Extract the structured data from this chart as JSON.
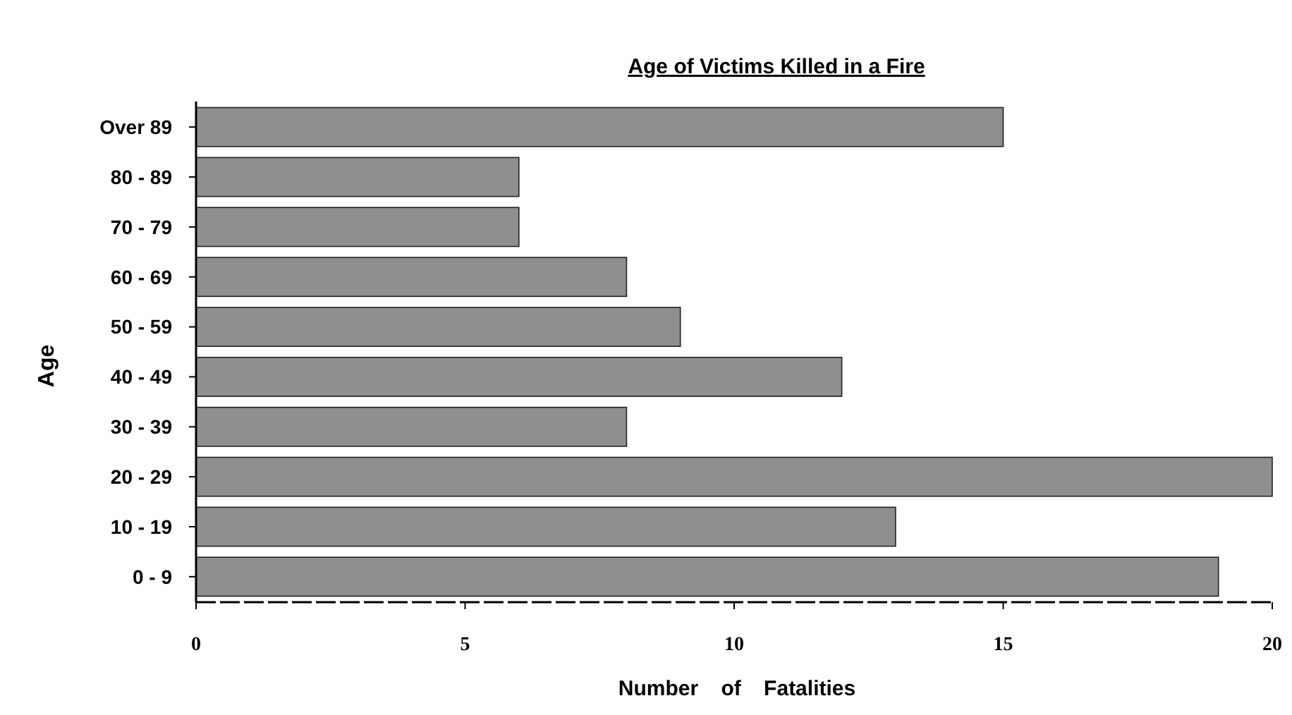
{
  "chart_data": {
    "type": "bar",
    "orientation": "horizontal",
    "title": "Age of Victims Killed in a Fire",
    "xlabel": "Number of Fatalities",
    "ylabel": "Age",
    "categories": [
      "Over 89",
      "80 - 89",
      "70 - 79",
      "60 - 69",
      "50 - 59",
      "40 - 49",
      "30 - 39",
      "20 - 29",
      "10 - 19",
      "0 - 9"
    ],
    "values": [
      15,
      6,
      6,
      8,
      9,
      12,
      8,
      20,
      13,
      19
    ],
    "color": "#8f8f8f",
    "xlim": [
      0,
      20
    ],
    "xticks": [
      0,
      5,
      10,
      15,
      20
    ],
    "grid": false
  }
}
